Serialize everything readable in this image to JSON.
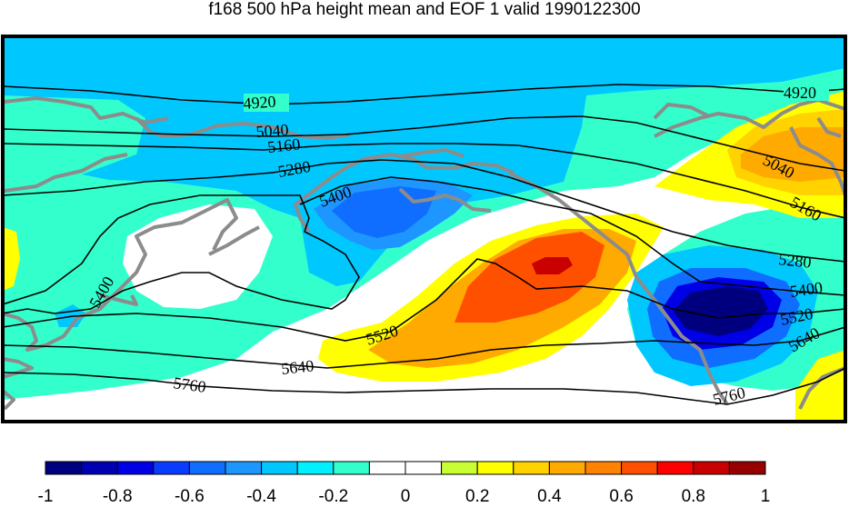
{
  "title": "f168 500 hPa height mean and EOF 1 valid 1990122300",
  "colors": {
    "frame": "#000000",
    "coastline": "#8c8c8c",
    "contour": "#000000",
    "land_bg": "#ffffff"
  },
  "colorbar": {
    "ticks": [
      "-1",
      "-0.8",
      "-0.6",
      "-0.4",
      "-0.2",
      "0",
      "0.2",
      "0.4",
      "0.6",
      "0.8",
      "1"
    ],
    "bins": [
      "#00007f",
      "#0000b3",
      "#0000e6",
      "#0a3cff",
      "#0f6eff",
      "#1e96ff",
      "#00c8ff",
      "#00f0ff",
      "#33ffcc",
      "#ffffff",
      "#ffffff",
      "#c8ff32",
      "#ffff00",
      "#ffd200",
      "#ffaa00",
      "#ff8200",
      "#ff5000",
      "#ff0000",
      "#c80000",
      "#960000"
    ]
  },
  "contour_labels": [
    "4920",
    "4920",
    "5040",
    "5040",
    "5160",
    "5160",
    "5280",
    "5280",
    "5400",
    "5400",
    "5400",
    "5520",
    "5520",
    "5640",
    "5640",
    "5760",
    "5760"
  ]
}
